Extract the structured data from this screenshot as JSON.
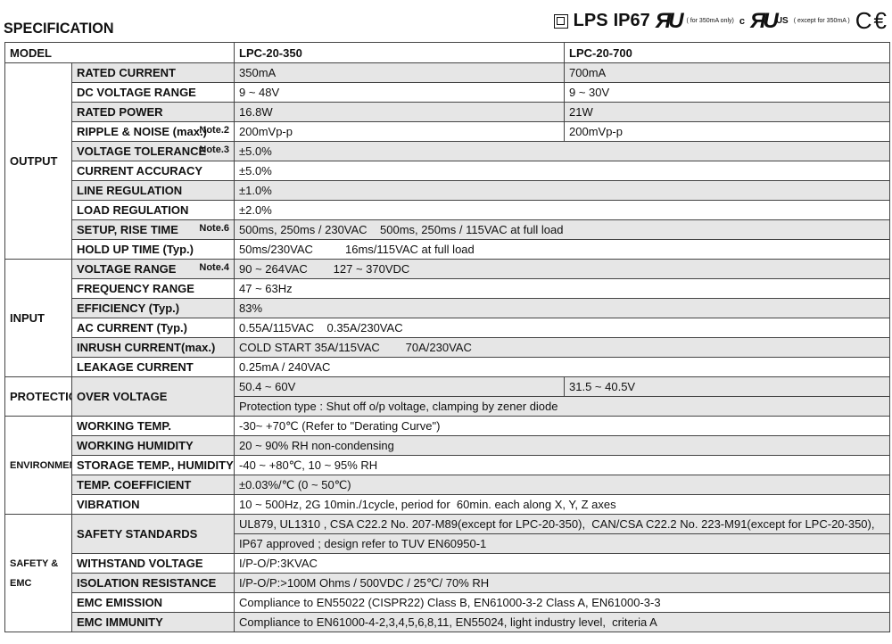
{
  "title": "SPECIFICATION",
  "certs": {
    "lps": "LPS",
    "ip": "IP67",
    "ul_note": "( for 350mA only)",
    "cul_c": "c",
    "cul_us": "US",
    "cul_note": "( except for 350mA )",
    "ce": "CE",
    "icons": [
      "double-insulation-icon",
      "ul-recognized-icon",
      "cul-us-icon",
      "ce-mark-icon"
    ]
  },
  "model": {
    "label": "MODEL",
    "col1": "LPC-20-350",
    "col2": "LPC-20-700"
  },
  "groups": [
    {
      "name": "OUTPUT",
      "rows": [
        {
          "label": "RATED CURRENT",
          "v1": "350mA",
          "v2": "700mA"
        },
        {
          "label": "DC VOLTAGE RANGE",
          "v1": "9 ~ 48V",
          "v2": "9 ~ 30V"
        },
        {
          "label": "RATED POWER",
          "v1": "16.8W",
          "v2": "21W"
        },
        {
          "label": "RIPPLE & NOISE (max.)",
          "note": "Note.2",
          "v1": "200mVp-p",
          "v2": "200mVp-p"
        },
        {
          "label": "VOLTAGE TOLERANCE",
          "note": "Note.3",
          "v1": "±5.0%"
        },
        {
          "label": "CURRENT ACCURACY",
          "v1": "±5.0%"
        },
        {
          "label": "LINE REGULATION",
          "v1": "±1.0%"
        },
        {
          "label": "LOAD REGULATION",
          "v1": "±2.0%"
        },
        {
          "label": "SETUP, RISE TIME",
          "note": "Note.6",
          "v1": "500ms, 250ms / 230VAC    500ms, 250ms / 115VAC at full load"
        },
        {
          "label": "HOLD UP TIME (Typ.)",
          "v1": "50ms/230VAC          16ms/115VAC at full load"
        }
      ]
    },
    {
      "name": "INPUT",
      "rows": [
        {
          "label": "VOLTAGE RANGE",
          "note": "Note.4",
          "v1": "90 ~ 264VAC        127 ~ 370VDC"
        },
        {
          "label": "FREQUENCY RANGE",
          "v1": "47 ~ 63Hz"
        },
        {
          "label": "EFFICIENCY (Typ.)",
          "v1": "83%"
        },
        {
          "label": "AC CURRENT (Typ.)",
          "v1": "0.55A/115VAC    0.35A/230VAC"
        },
        {
          "label": "INRUSH CURRENT(max.)",
          "v1": "COLD START 35A/115VAC        70A/230VAC"
        },
        {
          "label": "LEAKAGE CURRENT",
          "v1": "0.25mA / 240VAC"
        }
      ]
    },
    {
      "name": "PROTECTION",
      "rows": [
        {
          "label": "OVER VOLTAGE",
          "v1": "50.4 ~ 60V",
          "v2": "31.5 ~ 40.5V",
          "v_extra": "Protection type : Shut off o/p voltage, clamping by zener diode"
        }
      ]
    },
    {
      "name": "ENVIRONMENT",
      "rows": [
        {
          "label": "WORKING TEMP.",
          "v1": "-30~ +70℃ (Refer to \"Derating Curve\")"
        },
        {
          "label": "WORKING HUMIDITY",
          "v1": "20 ~ 90% RH non-condensing"
        },
        {
          "label": "STORAGE TEMP., HUMIDITY",
          "v1": "-40 ~ +80℃, 10 ~ 95% RH"
        },
        {
          "label": "TEMP. COEFFICIENT",
          "v1": "±0.03%/℃ (0 ~ 50℃)"
        },
        {
          "label": "VIBRATION",
          "v1": "10 ~ 500Hz, 2G 10min./1cycle, period for  60min. each along X, Y, Z axes"
        }
      ]
    },
    {
      "name": "SAFETY & EMC",
      "rows": [
        {
          "label": "SAFETY STANDARDS",
          "v1": "UL879, UL1310 , CSA C22.2 No. 207-M89(except for LPC-20-350),  CAN/CSA C22.2 No. 223-M91(except for LPC-20-350),",
          "v_extra": "IP67 approved ; design refer to TUV EN60950-1"
        },
        {
          "label": "WITHSTAND VOLTAGE",
          "v1": "I/P-O/P:3KVAC"
        },
        {
          "label": "ISOLATION RESISTANCE",
          "v1": "I/P-O/P:>100M Ohms / 500VDC / 25℃/ 70% RH"
        },
        {
          "label": "EMC EMISSION",
          "v1": "Compliance to EN55022 (CISPR22) Class B, EN61000-3-2 Class A, EN61000-3-3"
        },
        {
          "label": "EMC IMMUNITY",
          "v1": "Compliance to EN61000-4-2,3,4,5,6,8,11, EN55024, light industry level,  criteria A"
        }
      ]
    }
  ]
}
